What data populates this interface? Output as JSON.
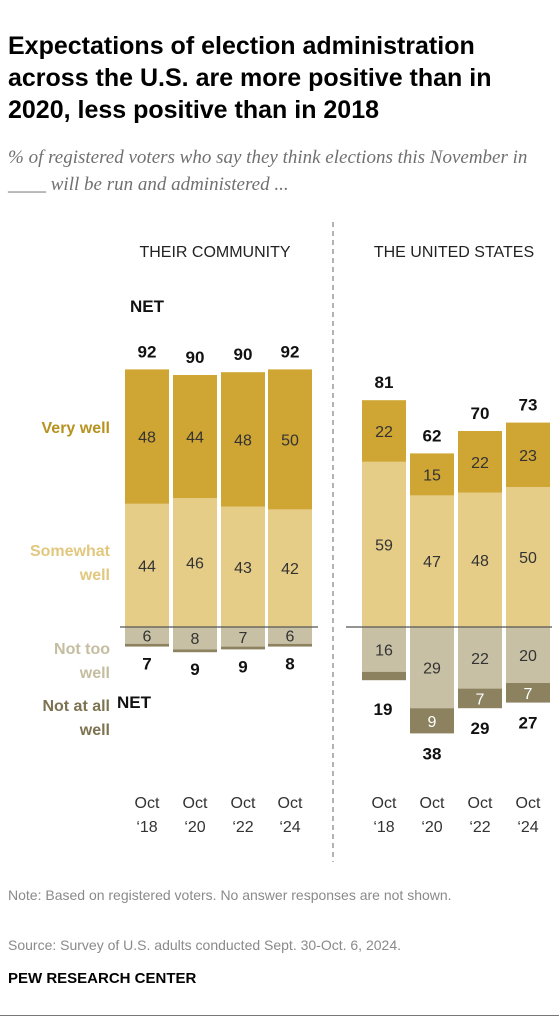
{
  "title": "Expectations of election administration across the U.S. are more positive than in 2020, less positive than in 2018",
  "subtitle": "% of registered voters who say they think elections this November in ____ will be run and administered ...",
  "note": "Note: Based on registered voters. No answer responses are not shown.",
  "source": "Source: Survey of U.S. adults conducted Sept. 30-Oct. 6, 2024.",
  "brand": "PEW RESEARCH CENTER",
  "colors": {
    "very_well": "#cfa533",
    "somewhat_well": "#e6cd87",
    "not_too_well": "#c7c0a5",
    "not_at_all_well": "#8c8260",
    "label_very_well": "#b8921f",
    "label_somewhat_well": "#e2c77e",
    "label_not_too_well": "#c4bd9f",
    "label_not_at_all_well": "#7d7350"
  },
  "legend": {
    "very_well": "Very well",
    "somewhat_well": [
      "Somewhat",
      "well"
    ],
    "not_too_well": [
      "Not too",
      "well"
    ],
    "not_at_all_well": [
      "Not at all",
      "well"
    ]
  },
  "net_label": "NET",
  "chart_data": [
    {
      "type": "bar",
      "title": "THEIR COMMUNITY",
      "categories": [
        [
          "Oct",
          "‘18"
        ],
        [
          "Oct",
          "‘20"
        ],
        [
          "Oct",
          "‘22"
        ],
        [
          "Oct",
          "‘24"
        ]
      ],
      "series": [
        {
          "name": "Very well",
          "values": [
            48,
            44,
            48,
            50
          ]
        },
        {
          "name": "Somewhat well",
          "values": [
            44,
            46,
            43,
            42
          ]
        },
        {
          "name": "Not too well",
          "values": [
            6,
            8,
            7,
            6
          ]
        },
        {
          "name": "Not at all well",
          "values": [
            1,
            1,
            1,
            1
          ]
        }
      ],
      "series_labels": {
        "Very well": [
          "48",
          "44",
          "48",
          "50"
        ],
        "Somewhat well": [
          "44",
          "46",
          "43",
          "42"
        ],
        "Not too well": [
          "6",
          "8",
          "7",
          "6"
        ],
        "Not at all well": [
          "",
          "",
          "",
          ""
        ]
      },
      "net_positive": [
        92,
        90,
        90,
        92
      ],
      "net_negative": [
        7,
        9,
        9,
        8
      ]
    },
    {
      "type": "bar",
      "title": "THE UNITED STATES",
      "categories": [
        [
          "Oct",
          "‘18"
        ],
        [
          "Oct",
          "‘20"
        ],
        [
          "Oct",
          "‘22"
        ],
        [
          "Oct",
          "‘24"
        ]
      ],
      "series": [
        {
          "name": "Very well",
          "values": [
            22,
            15,
            22,
            23
          ]
        },
        {
          "name": "Somewhat well",
          "values": [
            59,
            47,
            48,
            50
          ]
        },
        {
          "name": "Not too well",
          "values": [
            16,
            29,
            22,
            20
          ]
        },
        {
          "name": "Not at all well",
          "values": [
            3,
            9,
            7,
            7
          ]
        }
      ],
      "series_labels": {
        "Very well": [
          "22",
          "15",
          "22",
          "23"
        ],
        "Somewhat well": [
          "59",
          "47",
          "48",
          "50"
        ],
        "Not too well": [
          "16",
          "29",
          "22",
          "20"
        ],
        "Not at all well": [
          "",
          "9",
          "7",
          "7"
        ]
      },
      "net_positive": [
        81,
        62,
        70,
        73
      ],
      "net_negative": [
        19,
        38,
        29,
        27
      ]
    }
  ]
}
